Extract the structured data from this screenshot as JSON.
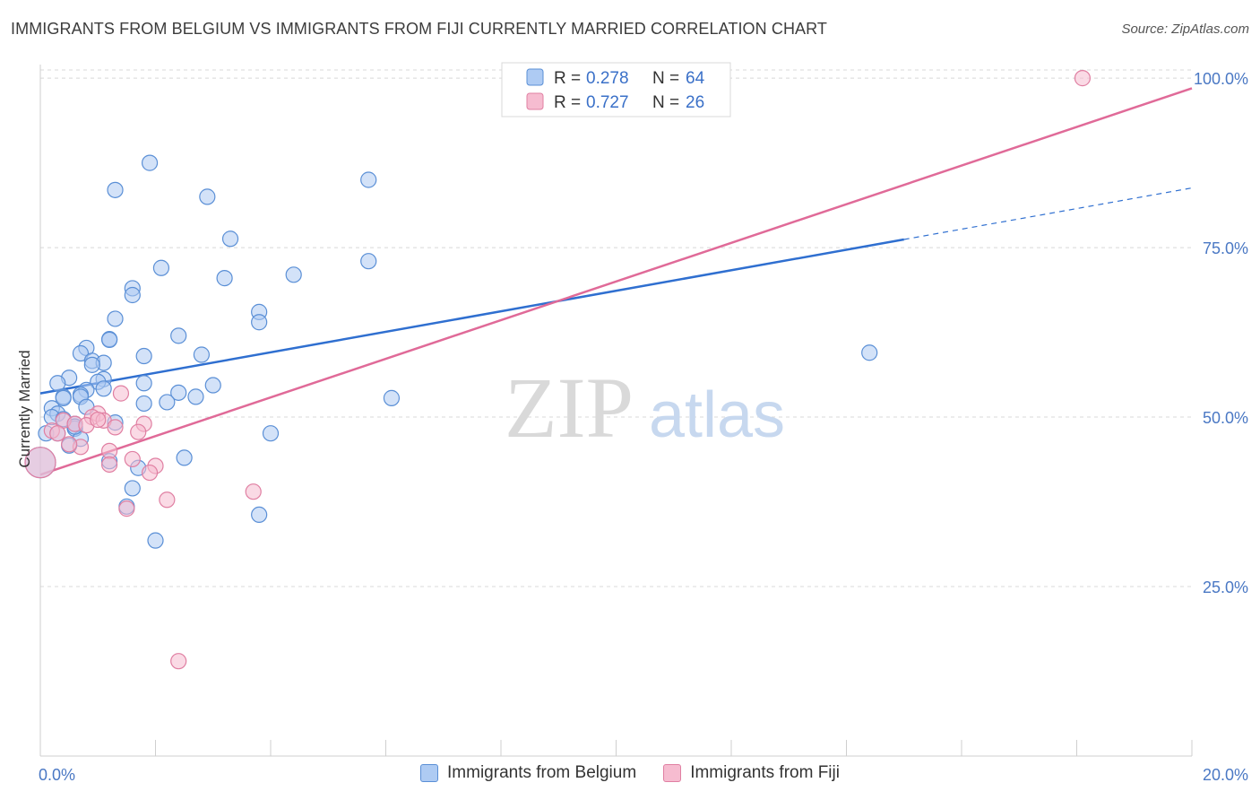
{
  "title": "IMMIGRANTS FROM BELGIUM VS IMMIGRANTS FROM FIJI CURRENTLY MARRIED CORRELATION CHART",
  "source": "Source: ZipAtlas.com",
  "watermark": {
    "zip": "ZIP",
    "atlas": "atlas"
  },
  "legend": {
    "items": [
      {
        "r_label": "R =",
        "r_value": "0.278",
        "n_label": "N =",
        "n_value": "64"
      },
      {
        "r_label": "R =",
        "r_value": "0.727",
        "n_label": "N =",
        "n_value": "26"
      }
    ]
  },
  "bottom_legend": {
    "belgium": "Immigrants from Belgium",
    "fiji": "Immigrants from Fiji"
  },
  "colors": {
    "belgium_fill": "#aecbf3",
    "belgium_stroke": "#5a8fd6",
    "belgium_line": "#2f6fd0",
    "fiji_fill": "#f6bcd0",
    "fiji_stroke": "#e07fa2",
    "fiji_line": "#e06a98",
    "grid": "#d8d8d8",
    "tick_text": "#4a78c4"
  },
  "chart_data": {
    "type": "scatter",
    "title": "IMMIGRANTS FROM BELGIUM VS IMMIGRANTS FROM FIJI CURRENTLY MARRIED CORRELATION CHART",
    "xlabel": "",
    "ylabel": "Currently Married",
    "xlim": [
      0,
      20
    ],
    "ylim": [
      0,
      102
    ],
    "x_ticks": [
      0,
      2,
      4,
      6,
      8,
      10,
      12,
      14,
      16,
      18,
      20
    ],
    "x_tick_labels": {
      "0": "0.0%",
      "20": "20.0%"
    },
    "y_ticks": [
      25,
      50,
      75,
      100
    ],
    "y_tick_labels": [
      "25.0%",
      "50.0%",
      "75.0%",
      "100.0%"
    ],
    "grid": true,
    "legend_position": "top-center",
    "series": [
      {
        "name": "Immigrants from Belgium",
        "r": 0.278,
        "n": 64,
        "trend": {
          "x": [
            0,
            15.0
          ],
          "y": [
            53.5,
            76.2
          ]
        },
        "trend_dashed": {
          "x": [
            15.0,
            20.0
          ],
          "y": [
            76.2,
            83.8
          ]
        },
        "points": [
          [
            1.9,
            87.5
          ],
          [
            1.3,
            83.5
          ],
          [
            5.7,
            85.0
          ],
          [
            2.9,
            82.5
          ],
          [
            3.3,
            76.3
          ],
          [
            2.1,
            72.0
          ],
          [
            5.7,
            73.0
          ],
          [
            3.2,
            70.5
          ],
          [
            4.4,
            71.0
          ],
          [
            1.6,
            69.0
          ],
          [
            1.6,
            68.0
          ],
          [
            1.3,
            64.5
          ],
          [
            3.8,
            65.5
          ],
          [
            3.8,
            64.0
          ],
          [
            2.4,
            62.0
          ],
          [
            1.2,
            61.5
          ],
          [
            1.2,
            61.4
          ],
          [
            0.8,
            60.2
          ],
          [
            0.7,
            59.4
          ],
          [
            1.8,
            59.0
          ],
          [
            2.8,
            59.2
          ],
          [
            0.9,
            58.3
          ],
          [
            1.1,
            58.0
          ],
          [
            0.9,
            57.7
          ],
          [
            0.5,
            55.8
          ],
          [
            1.1,
            55.6
          ],
          [
            0.3,
            55.0
          ],
          [
            1.0,
            55.2
          ],
          [
            1.8,
            55.0
          ],
          [
            1.1,
            54.2
          ],
          [
            0.8,
            54.0
          ],
          [
            3.0,
            54.7
          ],
          [
            0.4,
            53.0
          ],
          [
            0.7,
            53.3
          ],
          [
            2.4,
            53.6
          ],
          [
            0.4,
            52.8
          ],
          [
            0.7,
            53.0
          ],
          [
            2.7,
            53.0
          ],
          [
            2.2,
            52.2
          ],
          [
            1.8,
            52.0
          ],
          [
            0.8,
            51.5
          ],
          [
            0.2,
            51.3
          ],
          [
            0.3,
            50.5
          ],
          [
            0.2,
            50.0
          ],
          [
            0.4,
            49.7
          ],
          [
            1.3,
            49.2
          ],
          [
            0.6,
            49.0
          ],
          [
            0.6,
            48.3
          ],
          [
            0.1,
            47.6
          ],
          [
            0.7,
            46.8
          ],
          [
            0.5,
            45.8
          ],
          [
            4.0,
            47.6
          ],
          [
            2.5,
            44.0
          ],
          [
            1.2,
            43.5
          ],
          [
            1.7,
            42.5
          ],
          [
            1.6,
            39.5
          ],
          [
            1.5,
            36.8
          ],
          [
            3.8,
            35.6
          ],
          [
            2.0,
            31.8
          ],
          [
            6.1,
            52.8
          ],
          [
            14.4,
            59.5
          ],
          [
            0.0,
            43.3
          ],
          [
            0.3,
            47.6
          ],
          [
            0.6,
            48.6
          ]
        ]
      },
      {
        "name": "Immigrants from Fiji",
        "r": 0.727,
        "n": 26,
        "trend": {
          "x": [
            0,
            20.0
          ],
          "y": [
            41.5,
            98.5
          ]
        },
        "points": [
          [
            18.1,
            100.0
          ],
          [
            1.4,
            53.5
          ],
          [
            1.0,
            50.5
          ],
          [
            0.9,
            50.0
          ],
          [
            1.1,
            49.5
          ],
          [
            0.4,
            49.5
          ],
          [
            0.6,
            49.0
          ],
          [
            1.8,
            49.0
          ],
          [
            1.3,
            48.5
          ],
          [
            0.2,
            48.0
          ],
          [
            1.7,
            47.8
          ],
          [
            0.7,
            45.6
          ],
          [
            0.5,
            46.0
          ],
          [
            1.2,
            45.0
          ],
          [
            1.6,
            43.8
          ],
          [
            1.2,
            43.0
          ],
          [
            2.0,
            42.8
          ],
          [
            1.9,
            41.8
          ],
          [
            3.7,
            39.0
          ],
          [
            2.2,
            37.8
          ],
          [
            1.5,
            36.5
          ],
          [
            2.4,
            14.0
          ],
          [
            0.0,
            43.3
          ],
          [
            0.3,
            47.6
          ],
          [
            0.8,
            48.8
          ],
          [
            1.0,
            49.6
          ]
        ]
      }
    ]
  }
}
